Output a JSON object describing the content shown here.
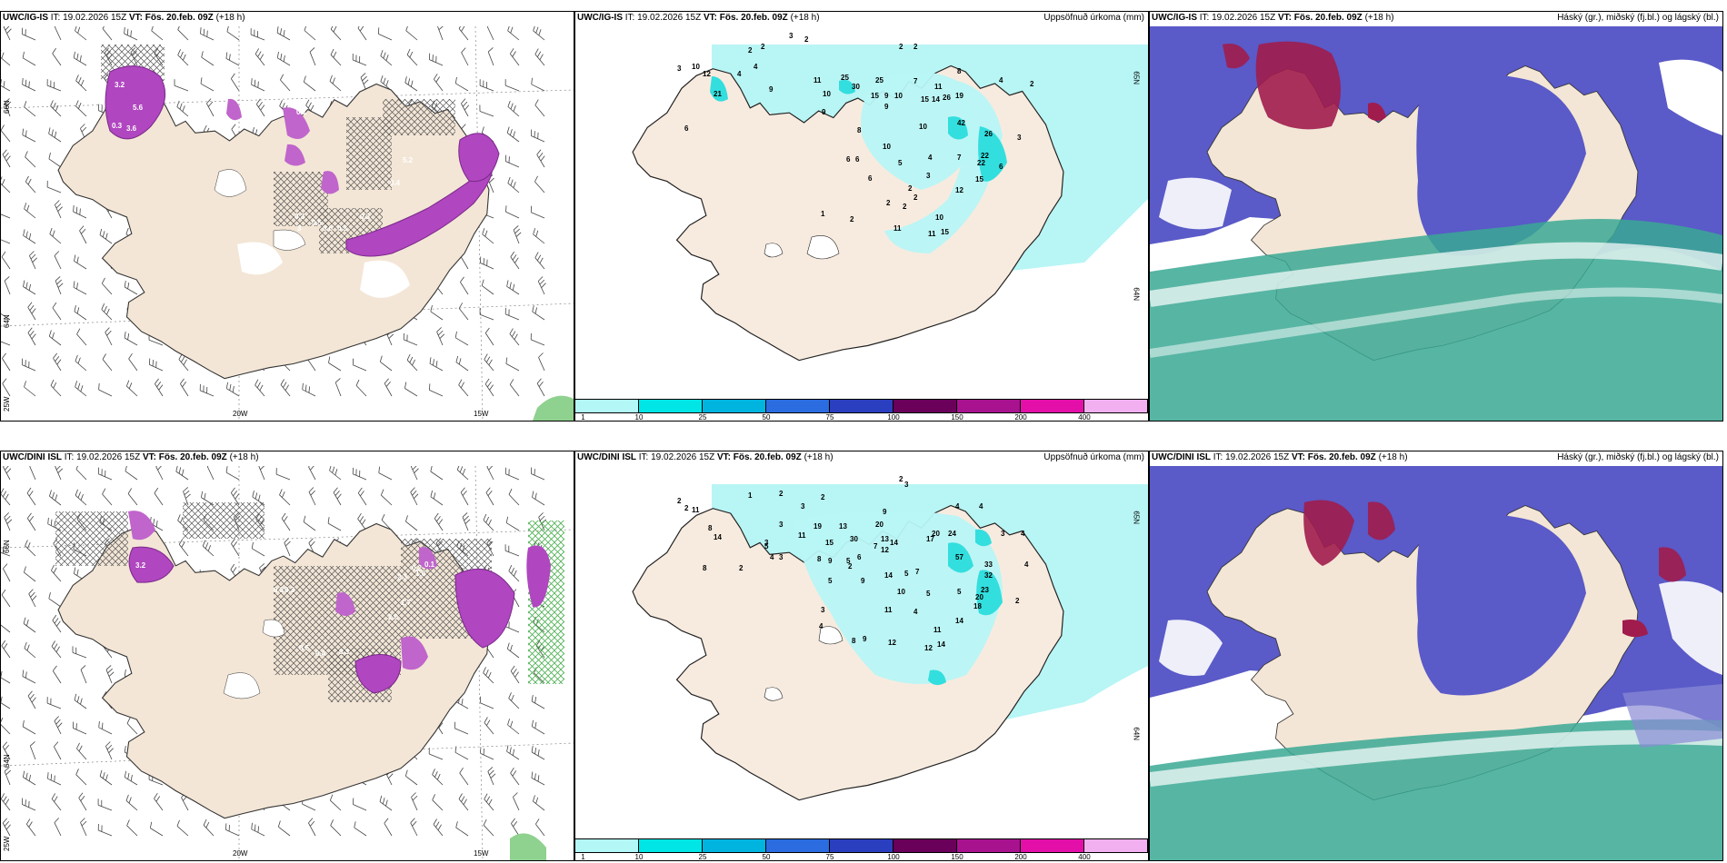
{
  "panels": [
    {
      "id": "p1",
      "model": "UWC/IG-IS",
      "it": "IT: 19.02.2026 15Z",
      "vt": "VT: Fös. 20.feb. 09Z",
      "lead": "(+18 h)",
      "right": "",
      "lat": [
        "66N",
        "64N"
      ],
      "lon": [
        "25W",
        "20W",
        "15W"
      ]
    },
    {
      "id": "p2",
      "model": "UWC/IG-IS",
      "it": "IT: 19.02.2026 15Z",
      "vt": "VT: Fös. 20.feb. 09Z",
      "lead": "(+18 h)",
      "right": "Uppsöfnuð úrkoma (mm)",
      "lat": [
        "65N",
        "64N"
      ]
    },
    {
      "id": "p3",
      "model": "UWC/IG-IS",
      "it": "IT: 19.02.2026 15Z",
      "vt": "VT: Fös. 20.feb. 09Z",
      "lead": "(+18 h)",
      "right": "Háský (gr.), miðský (fj.bl.) og lágský (bl.)"
    },
    {
      "id": "p4",
      "model": "UWC/DINI ISL",
      "it": "IT: 19.02.2026 15Z",
      "vt": "VT: Fös. 20.feb. 09Z",
      "lead": "(+18 h)",
      "right": "",
      "lat": [
        "66N",
        "64N"
      ],
      "lon": [
        "25W",
        "20W",
        "15W"
      ]
    },
    {
      "id": "p5",
      "model": "UWC/DINI ISL",
      "it": "IT: 19.02.2026 15Z",
      "vt": "VT: Fös. 20.feb. 09Z",
      "lead": "(+18 h)",
      "right": "Uppsöfnuð úrkoma (mm)",
      "lat": [
        "65N",
        "64N"
      ]
    },
    {
      "id": "p6",
      "model": "UWC/DINI ISL",
      "it": "IT: 19.02.2026 15Z",
      "vt": "VT: Fös. 20.feb. 09Z",
      "lead": "(+18 h)",
      "right": "Háský (gr.), miðský (fj.bl.) og lágský (bl.)"
    }
  ],
  "legend": {
    "ticks": [
      "1",
      "10",
      "25",
      "50",
      "75",
      "100",
      "150",
      "200",
      "400"
    ],
    "colors": [
      "#b3f7f7",
      "#00e5e5",
      "#00b4e0",
      "#2b6ce0",
      "#2a3fbf",
      "#6a005a",
      "#a8128f",
      "#e30fa8",
      "#f2b0f0"
    ]
  },
  "colors": {
    "land": "#f3e6d6",
    "precip": "#b8f5f5",
    "cloud_low": "#5a5ac8",
    "cloud_high": "#a01c4c",
    "cloud_mid": "#3aa894",
    "hatch": "#555555",
    "purple": "#b046c0"
  },
  "precip_ig": [
    {
      "v": "3",
      "x": 235,
      "y": 6
    },
    {
      "v": "2",
      "x": 252,
      "y": 10
    },
    {
      "v": "2",
      "x": 190,
      "y": 22
    },
    {
      "v": "2",
      "x": 204,
      "y": 18
    },
    {
      "v": "4",
      "x": 196,
      "y": 40
    },
    {
      "v": "3",
      "x": 112,
      "y": 42
    },
    {
      "v": "10",
      "x": 128,
      "y": 40
    },
    {
      "v": "12",
      "x": 140,
      "y": 48
    },
    {
      "v": "21",
      "x": 152,
      "y": 70
    },
    {
      "v": "4",
      "x": 178,
      "y": 48
    },
    {
      "v": "9",
      "x": 213,
      "y": 65
    },
    {
      "v": "11",
      "x": 262,
      "y": 55
    },
    {
      "v": "25",
      "x": 292,
      "y": 52
    },
    {
      "v": "30",
      "x": 304,
      "y": 62
    },
    {
      "v": "25",
      "x": 330,
      "y": 55
    },
    {
      "v": "10",
      "x": 272,
      "y": 70
    },
    {
      "v": "15",
      "x": 325,
      "y": 72
    },
    {
      "v": "9",
      "x": 340,
      "y": 72
    },
    {
      "v": "10",
      "x": 351,
      "y": 72
    },
    {
      "v": "9",
      "x": 340,
      "y": 84
    },
    {
      "v": "7",
      "x": 372,
      "y": 56
    },
    {
      "v": "11",
      "x": 395,
      "y": 62
    },
    {
      "v": "15",
      "x": 380,
      "y": 76
    },
    {
      "v": "14",
      "x": 392,
      "y": 76
    },
    {
      "v": "26",
      "x": 404,
      "y": 74
    },
    {
      "v": "19",
      "x": 418,
      "y": 72
    },
    {
      "v": "42",
      "x": 420,
      "y": 102
    },
    {
      "v": "26",
      "x": 450,
      "y": 114
    },
    {
      "v": "22",
      "x": 446,
      "y": 138
    },
    {
      "v": "22",
      "x": 442,
      "y": 146
    },
    {
      "v": "15",
      "x": 440,
      "y": 164
    },
    {
      "v": "10",
      "x": 378,
      "y": 106
    },
    {
      "v": "4",
      "x": 388,
      "y": 140
    },
    {
      "v": "7",
      "x": 420,
      "y": 140
    },
    {
      "v": "12",
      "x": 418,
      "y": 176
    },
    {
      "v": "2",
      "x": 356,
      "y": 18
    },
    {
      "v": "2",
      "x": 372,
      "y": 18
    },
    {
      "v": "8",
      "x": 420,
      "y": 45
    },
    {
      "v": "4",
      "x": 466,
      "y": 55
    },
    {
      "v": "2",
      "x": 500,
      "y": 59
    },
    {
      "v": "3",
      "x": 486,
      "y": 118
    },
    {
      "v": "6",
      "x": 466,
      "y": 150
    },
    {
      "v": "9",
      "x": 271,
      "y": 90
    },
    {
      "v": "8",
      "x": 310,
      "y": 110
    },
    {
      "v": "10",
      "x": 338,
      "y": 128
    },
    {
      "v": "5",
      "x": 355,
      "y": 146
    },
    {
      "v": "3",
      "x": 386,
      "y": 160
    },
    {
      "v": "2",
      "x": 366,
      "y": 174
    },
    {
      "v": "2",
      "x": 372,
      "y": 184
    },
    {
      "v": "2",
      "x": 342,
      "y": 190
    },
    {
      "v": "2",
      "x": 302,
      "y": 208
    },
    {
      "v": "11",
      "x": 350,
      "y": 218
    },
    {
      "v": "11",
      "x": 388,
      "y": 224
    },
    {
      "v": "10",
      "x": 396,
      "y": 206
    },
    {
      "v": "15",
      "x": 402,
      "y": 222
    },
    {
      "v": "6",
      "x": 120,
      "y": 108
    },
    {
      "v": "6",
      "x": 298,
      "y": 142
    },
    {
      "v": "6",
      "x": 308,
      "y": 142
    },
    {
      "v": "6",
      "x": 322,
      "y": 163
    },
    {
      "v": "2",
      "x": 360,
      "y": 194
    },
    {
      "v": "1",
      "x": 270,
      "y": 202
    }
  ],
  "precip_dini": [
    {
      "v": "1",
      "x": 190,
      "y": 28
    },
    {
      "v": "2",
      "x": 224,
      "y": 26
    },
    {
      "v": "3",
      "x": 248,
      "y": 40
    },
    {
      "v": "2",
      "x": 270,
      "y": 30
    },
    {
      "v": "2",
      "x": 356,
      "y": 10
    },
    {
      "v": "3",
      "x": 362,
      "y": 16
    },
    {
      "v": "2",
      "x": 112,
      "y": 34
    },
    {
      "v": "2",
      "x": 120,
      "y": 42
    },
    {
      "v": "11",
      "x": 128,
      "y": 44
    },
    {
      "v": "8",
      "x": 146,
      "y": 64
    },
    {
      "v": "14",
      "x": 152,
      "y": 74
    },
    {
      "v": "8",
      "x": 140,
      "y": 108
    },
    {
      "v": "2",
      "x": 180,
      "y": 108
    },
    {
      "v": "3",
      "x": 224,
      "y": 60
    },
    {
      "v": "3",
      "x": 208,
      "y": 80
    },
    {
      "v": "5",
      "x": 208,
      "y": 84
    },
    {
      "v": "4",
      "x": 214,
      "y": 96
    },
    {
      "v": "3",
      "x": 224,
      "y": 96
    },
    {
      "v": "11",
      "x": 245,
      "y": 72
    },
    {
      "v": "19",
      "x": 262,
      "y": 62
    },
    {
      "v": "15",
      "x": 275,
      "y": 80
    },
    {
      "v": "13",
      "x": 290,
      "y": 62
    },
    {
      "v": "30",
      "x": 302,
      "y": 76
    },
    {
      "v": "9",
      "x": 338,
      "y": 46
    },
    {
      "v": "20",
      "x": 330,
      "y": 60
    },
    {
      "v": "13",
      "x": 336,
      "y": 76
    },
    {
      "v": "14",
      "x": 346,
      "y": 80
    },
    {
      "v": "12",
      "x": 336,
      "y": 88
    },
    {
      "v": "17",
      "x": 386,
      "y": 76
    },
    {
      "v": "20",
      "x": 392,
      "y": 70
    },
    {
      "v": "24",
      "x": 410,
      "y": 70
    },
    {
      "v": "4",
      "x": 418,
      "y": 40
    },
    {
      "v": "4",
      "x": 444,
      "y": 40
    },
    {
      "v": "3",
      "x": 468,
      "y": 70
    },
    {
      "v": "4",
      "x": 490,
      "y": 70
    },
    {
      "v": "57",
      "x": 418,
      "y": 96
    },
    {
      "v": "33",
      "x": 450,
      "y": 104
    },
    {
      "v": "32",
      "x": 450,
      "y": 116
    },
    {
      "v": "23",
      "x": 446,
      "y": 132
    },
    {
      "v": "20",
      "x": 440,
      "y": 140
    },
    {
      "v": "18",
      "x": 438,
      "y": 150
    },
    {
      "v": "14",
      "x": 418,
      "y": 166
    },
    {
      "v": "4",
      "x": 494,
      "y": 104
    },
    {
      "v": "2",
      "x": 484,
      "y": 144
    },
    {
      "v": "8",
      "x": 266,
      "y": 98
    },
    {
      "v": "9",
      "x": 278,
      "y": 100
    },
    {
      "v": "6",
      "x": 310,
      "y": 96
    },
    {
      "v": "2",
      "x": 300,
      "y": 106
    },
    {
      "v": "5",
      "x": 278,
      "y": 122
    },
    {
      "v": "9",
      "x": 314,
      "y": 122
    },
    {
      "v": "14",
      "x": 340,
      "y": 116
    },
    {
      "v": "5",
      "x": 362,
      "y": 114
    },
    {
      "v": "7",
      "x": 374,
      "y": 112
    },
    {
      "v": "10",
      "x": 354,
      "y": 134
    },
    {
      "v": "5",
      "x": 386,
      "y": 136
    },
    {
      "v": "5",
      "x": 420,
      "y": 134
    },
    {
      "v": "11",
      "x": 340,
      "y": 154
    },
    {
      "v": "4",
      "x": 372,
      "y": 156
    },
    {
      "v": "3",
      "x": 270,
      "y": 154
    },
    {
      "v": "4",
      "x": 268,
      "y": 172
    },
    {
      "v": "11",
      "x": 394,
      "y": 176
    },
    {
      "v": "12",
      "x": 344,
      "y": 190
    },
    {
      "v": "12",
      "x": 384,
      "y": 196
    },
    {
      "v": "14",
      "x": 398,
      "y": 192
    },
    {
      "v": "8",
      "x": 304,
      "y": 188
    },
    {
      "v": "9",
      "x": 316,
      "y": 186
    },
    {
      "v": "7",
      "x": 328,
      "y": 84
    },
    {
      "v": "5",
      "x": 298,
      "y": 100
    }
  ],
  "ccu_ig": [
    {
      "v": "3.2",
      "x": 125,
      "y": 60
    },
    {
      "v": "5.6",
      "x": 145,
      "y": 85
    },
    {
      "v": "0.3",
      "x": 122,
      "y": 105
    },
    {
      "v": "3.6",
      "x": 138,
      "y": 108
    },
    {
      "v": "0.1",
      "x": 325,
      "y": 90
    },
    {
      "v": "0.4",
      "x": 428,
      "y": 168
    },
    {
      "v": "0.3",
      "x": 395,
      "y": 205
    },
    {
      "v": "0.3",
      "x": 323,
      "y": 205
    },
    {
      "v": "3",
      "x": 326,
      "y": 218
    },
    {
      "v": "0.5",
      "x": 342,
      "y": 212
    },
    {
      "v": "0.6",
      "x": 354,
      "y": 218
    },
    {
      "v": "0.3",
      "x": 370,
      "y": 218
    },
    {
      "v": "5.2",
      "x": 442,
      "y": 143
    }
  ],
  "ccu_dini": [
    {
      "v": "3.2",
      "x": 148,
      "y": 105
    },
    {
      "v": "2.3",
      "x": 436,
      "y": 118
    },
    {
      "v": "1.6",
      "x": 456,
      "y": 114
    },
    {
      "v": "1.7",
      "x": 440,
      "y": 146
    },
    {
      "v": "2.0",
      "x": 426,
      "y": 162
    },
    {
      "v": "0.2",
      "x": 452,
      "y": 108
    },
    {
      "v": "0.1",
      "x": 466,
      "y": 104
    },
    {
      "v": "0.5",
      "x": 328,
      "y": 196
    },
    {
      "v": "0.4",
      "x": 346,
      "y": 202
    },
    {
      "v": "0.3",
      "x": 372,
      "y": 200
    },
    {
      "v": "0.3",
      "x": 300,
      "y": 132
    },
    {
      "v": "0.3",
      "x": 312,
      "y": 132
    }
  ]
}
